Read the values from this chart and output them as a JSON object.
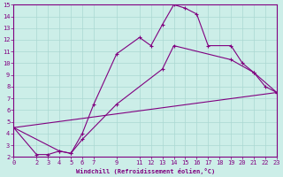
{
  "xlabel": "Windchill (Refroidissement éolien,°C)",
  "background_color": "#cceee8",
  "line_color": "#800080",
  "grid_color": "#aad8d2",
  "xlim": [
    0,
    23
  ],
  "ylim": [
    2,
    15
  ],
  "xticks": [
    0,
    2,
    3,
    4,
    5,
    6,
    7,
    9,
    11,
    12,
    13,
    14,
    15,
    16,
    17,
    18,
    19,
    20,
    21,
    22,
    23
  ],
  "yticks": [
    2,
    3,
    4,
    5,
    6,
    7,
    8,
    9,
    10,
    11,
    12,
    13,
    14,
    15
  ],
  "line1": {
    "x": [
      0,
      2,
      3,
      4,
      5,
      6,
      7,
      9,
      11,
      12,
      13,
      14,
      15,
      16,
      17,
      19,
      20,
      21,
      22,
      23
    ],
    "y": [
      4.5,
      2.2,
      2.2,
      2.5,
      2.3,
      4.0,
      6.5,
      10.8,
      12.2,
      11.5,
      13.3,
      15.0,
      14.7,
      14.2,
      11.5,
      11.5,
      10.0,
      9.2,
      8.0,
      7.5
    ]
  },
  "line2": {
    "x": [
      0,
      4,
      5,
      6,
      9,
      13,
      14,
      19,
      21,
      23
    ],
    "y": [
      4.5,
      2.5,
      2.3,
      3.5,
      6.5,
      9.5,
      11.5,
      10.3,
      9.2,
      7.5
    ]
  },
  "line3": {
    "x": [
      0,
      23
    ],
    "y": [
      4.5,
      7.5
    ]
  },
  "line4": {
    "x": [
      0,
      23
    ],
    "y": [
      4.5,
      7.5
    ]
  }
}
